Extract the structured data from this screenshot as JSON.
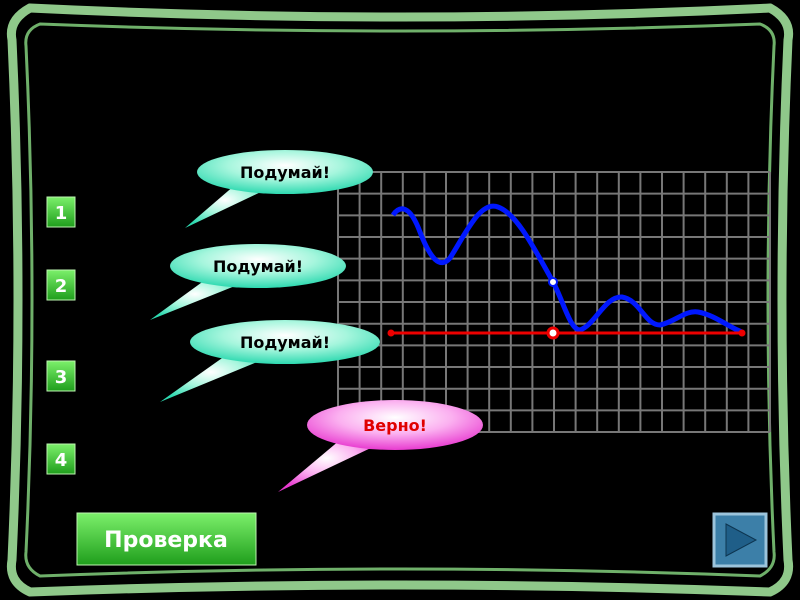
{
  "bubbles": [
    {
      "label": "Подумай!"
    },
    {
      "label": "Подумай!"
    },
    {
      "label": "Подумай!"
    },
    {
      "label": "Верно!"
    }
  ],
  "answers": [
    "1",
    "2",
    "3",
    "4"
  ],
  "check_button": "Проверка"
}
